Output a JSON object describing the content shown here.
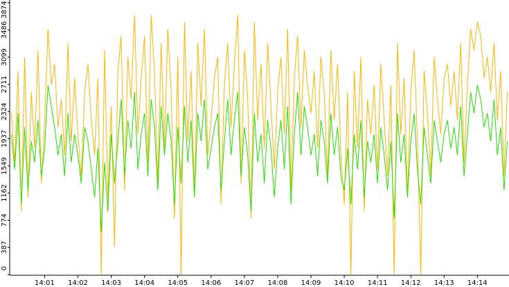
{
  "chart_data": {
    "type": "line",
    "categories": [
      null,
      null,
      null,
      null,
      null,
      null,
      null,
      null,
      null,
      null,
      "14:01",
      null,
      null,
      null,
      null,
      null,
      null,
      null,
      null,
      null,
      "14:02",
      null,
      null,
      null,
      null,
      null,
      null,
      null,
      null,
      null,
      "14:03",
      null,
      null,
      null,
      null,
      null,
      null,
      null,
      null,
      null,
      "14:04",
      null,
      null,
      null,
      null,
      null,
      null,
      null,
      null,
      null,
      "14:05",
      null,
      null,
      null,
      null,
      null,
      null,
      null,
      null,
      null,
      "14:06",
      null,
      null,
      null,
      null,
      null,
      null,
      null,
      null,
      null,
      "14:07",
      null,
      null,
      null,
      null,
      null,
      null,
      null,
      null,
      null,
      "14:08",
      null,
      null,
      null,
      null,
      null,
      null,
      null,
      null,
      null,
      "14:09",
      null,
      null,
      null,
      null,
      null,
      null,
      null,
      null,
      null,
      "14:10",
      null,
      null,
      null,
      null,
      null,
      null,
      null,
      null,
      null,
      "14:11",
      null,
      null,
      null,
      null,
      null,
      null,
      null,
      null,
      null,
      "14:12",
      null,
      null,
      null,
      null,
      null,
      null,
      null,
      null,
      null,
      "14:13",
      null,
      null,
      null,
      null,
      null,
      null,
      null,
      null,
      null,
      "14:14",
      null,
      null,
      null,
      null,
      null,
      null,
      null,
      null,
      null
    ],
    "series": [
      {
        "color": "#ffb400",
        "values": [
          2300,
          1600,
          2900,
          900,
          3100,
          1100,
          2600,
          1800,
          3200,
          1300,
          2200,
          3500,
          2700,
          3000,
          2100,
          2500,
          1700,
          3300,
          1900,
          2800,
          2000,
          1400,
          2600,
          3000,
          2200,
          1700,
          2800,
          0,
          3200,
          1100,
          2400,
          400,
          2900,
          3400,
          1200,
          3100,
          2500,
          3700,
          2000,
          2800,
          3400,
          1600,
          3700,
          2900,
          1300,
          3300,
          1800,
          3500,
          2600,
          800,
          3100,
          0,
          3600,
          1900,
          2900,
          1100,
          3300,
          2400,
          3500,
          1700,
          2200,
          2800,
          3100,
          1000,
          2700,
          3300,
          2100,
          3000,
          3700,
          1300,
          3200,
          2500,
          800,
          3600,
          2200,
          3000,
          1800,
          3300,
          2400,
          1500,
          2600,
          3100,
          2000,
          3500,
          1200,
          2800,
          3400,
          2100,
          3200,
          2700,
          2300,
          2900,
          1800,
          3100,
          2600,
          1400,
          3200,
          2200,
          3000,
          1700,
          1000,
          2600,
          0,
          2900,
          1800,
          3100,
          900,
          2500,
          2000,
          2700,
          1500,
          3000,
          2200,
          1400,
          2700,
          0,
          3300,
          2000,
          2800,
          1100,
          2600,
          3200,
          1900,
          0,
          2900,
          2300,
          1400,
          3100,
          2500,
          2000,
          2800,
          3000,
          2400,
          2900,
          2200,
          3300,
          1600,
          2700,
          3500,
          3200,
          3600,
          3400,
          2800,
          3100,
          2600,
          3300,
          2200,
          2900,
          1400,
          2600
        ]
      },
      {
        "color": "#22dd00",
        "values": [
          2000,
          1500,
          2300,
          1000,
          2100,
          1200,
          1900,
          1600,
          2200,
          1400,
          1800,
          2700,
          2400,
          2100,
          1700,
          2000,
          1400,
          2300,
          1600,
          2000,
          1700,
          1300,
          2100,
          1900,
          1500,
          1100,
          1800,
          600,
          1600,
          900,
          2000,
          1300,
          1900,
          2500,
          1400,
          2200,
          1800,
          2600,
          1500,
          2000,
          2300,
          1400,
          2500,
          2100,
          1200,
          2400,
          1700,
          2300,
          1900,
          1000,
          2100,
          1300,
          2400,
          1600,
          2200,
          1100,
          2300,
          1900,
          2500,
          1500,
          1800,
          2100,
          2300,
          1200,
          1900,
          2500,
          1700,
          2200,
          2600,
          1400,
          2100,
          1700,
          900,
          2300,
          1600,
          2000,
          1300,
          2200,
          1800,
          1100,
          1800,
          2200,
          1500,
          2400,
          1000,
          2000,
          2600,
          1700,
          2400,
          2100,
          1700,
          2000,
          1400,
          2200,
          1900,
          1300,
          2300,
          1700,
          2100,
          1400,
          1200,
          1800,
          1000,
          2000,
          1500,
          2200,
          1100,
          1900,
          1600,
          2000,
          1300,
          2100,
          1700,
          1200,
          1900,
          800,
          2300,
          1600,
          2000,
          1100,
          1900,
          2300,
          1500,
          1000,
          2100,
          1700,
          1300,
          2200,
          1900,
          1600,
          2000,
          2200,
          1800,
          2100,
          1700,
          2400,
          1400,
          2000,
          2600,
          2300,
          2700,
          2500,
          2100,
          2300,
          1900,
          2500,
          1700,
          2100,
          1200,
          1900
        ]
      }
    ],
    "ylim": [
      0,
      3874
    ],
    "yticks": [
      0,
      387,
      774,
      1162,
      1549,
      1937,
      2324,
      2711,
      3099,
      3486,
      3874
    ]
  }
}
